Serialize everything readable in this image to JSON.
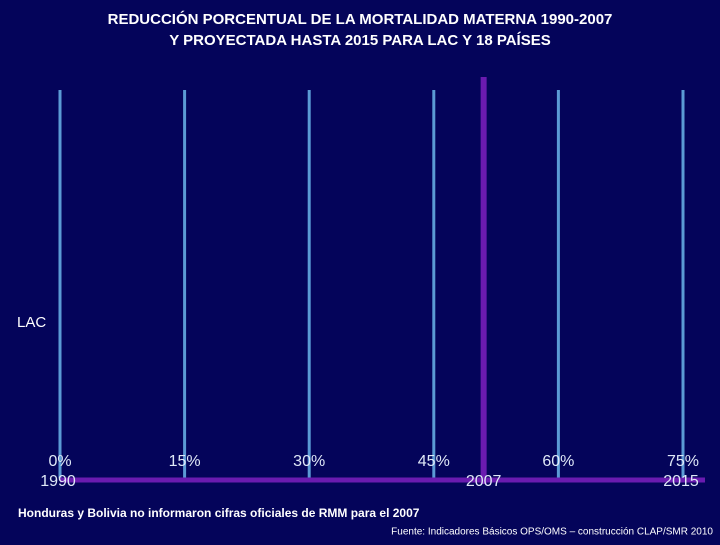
{
  "chart_data": {
    "type": "bar",
    "orientation": "horizontal",
    "title": [
      "REDUCCIÓN PORCENTUAL DE LA MORTALIDAD MATERNA 1990-2007",
      "Y PROYECTADA HASTA 2015 PARA LAC Y 18 PAÍSES"
    ],
    "categories": [
      "LAC"
    ],
    "values": [
      null
    ],
    "xlim": [
      0,
      75
    ],
    "xticks": [
      {
        "value": 0,
        "label": "0%"
      },
      {
        "value": 15,
        "label": "15%"
      },
      {
        "value": 30,
        "label": "30%"
      },
      {
        "value": 45,
        "label": "45%"
      },
      {
        "value": 60,
        "label": "60%"
      },
      {
        "value": 75,
        "label": "75%"
      }
    ],
    "x2lim": [
      1990,
      2015
    ],
    "x2ticks": [
      1990,
      2007,
      2015
    ],
    "grid": true,
    "grid_color": "#5b9bd5",
    "time_axis_color": "#6a1bb0",
    "note": "Honduras y Bolivia no informaron cifras oficiales de RMM para el 2007",
    "source": "Fuente: Indicadores Básicos OPS/OMS – construcción CLAP/SMR 2010"
  }
}
